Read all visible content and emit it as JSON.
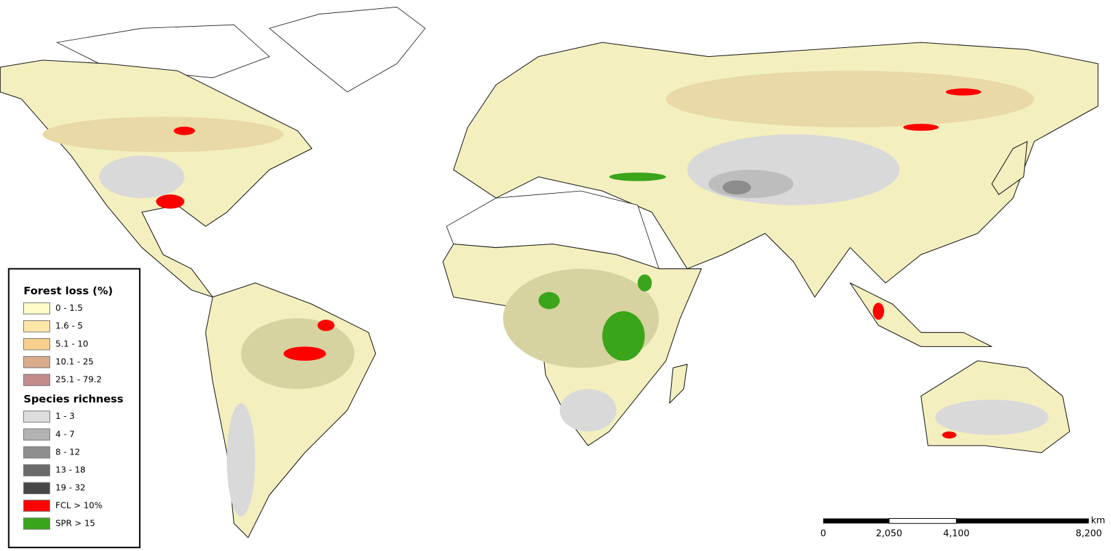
{
  "legend": {
    "forest_loss": {
      "title": "Forest loss (%)",
      "items": [
        "0 - 1.5",
        "1.6 - 5",
        "5.1 - 10",
        "10.1 - 25",
        "25.1 - 79.2"
      ]
    },
    "species_richness": {
      "title": "Species richness",
      "items": [
        "1 - 3",
        "4 - 7",
        "8 - 12",
        "13 - 18",
        "19 - 32"
      ]
    },
    "highlights": [
      "FCL > 10%",
      "SPR > 15"
    ]
  },
  "scale_bar": {
    "unit": "km",
    "labels": [
      "0",
      "2,050",
      "4,100",
      "8,200"
    ]
  }
}
